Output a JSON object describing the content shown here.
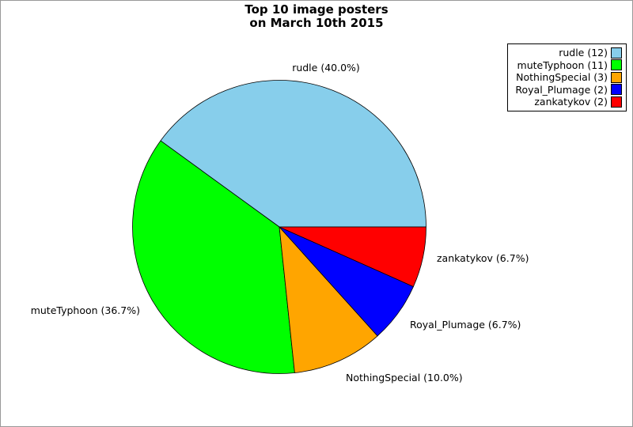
{
  "figure": {
    "title_line1": "Top 10 image posters",
    "title_line2": "on March 10th 2015"
  },
  "chart_data": {
    "type": "pie",
    "title": "Top 10 image posters on March 10th 2015",
    "total_count": 30,
    "start_angle_deg": 0,
    "direction": "counterclockwise",
    "legend_position": "upper-right",
    "background_color": "#ffffff",
    "wedge_edge_color": "#000000",
    "slices": [
      {
        "name": "rudle",
        "count": 12,
        "percent": 40.0,
        "color": "#87CEEB",
        "wedge_label": "rudle (40.0%)",
        "legend_label": "rudle (12)"
      },
      {
        "name": "muteTyphoon",
        "count": 11,
        "percent": 36.7,
        "color": "#00FF00",
        "wedge_label": "muteTyphoon (36.7%)",
        "legend_label": "muteTyphoon (11)"
      },
      {
        "name": "NothingSpecial",
        "count": 3,
        "percent": 10.0,
        "color": "#FFA500",
        "wedge_label": "NothingSpecial (10.0%)",
        "legend_label": "NothingSpecial (3)"
      },
      {
        "name": "Royal_Plumage",
        "count": 2,
        "percent": 6.7,
        "color": "#0000FF",
        "wedge_label": "Royal_Plumage (6.7%)",
        "legend_label": "Royal_Plumage (2)"
      },
      {
        "name": "zankatykov",
        "count": 2,
        "percent": 6.7,
        "color": "#FF0000",
        "wedge_label": "zankatykov (6.7%)",
        "legend_label": "zankatykov (2)"
      }
    ]
  }
}
